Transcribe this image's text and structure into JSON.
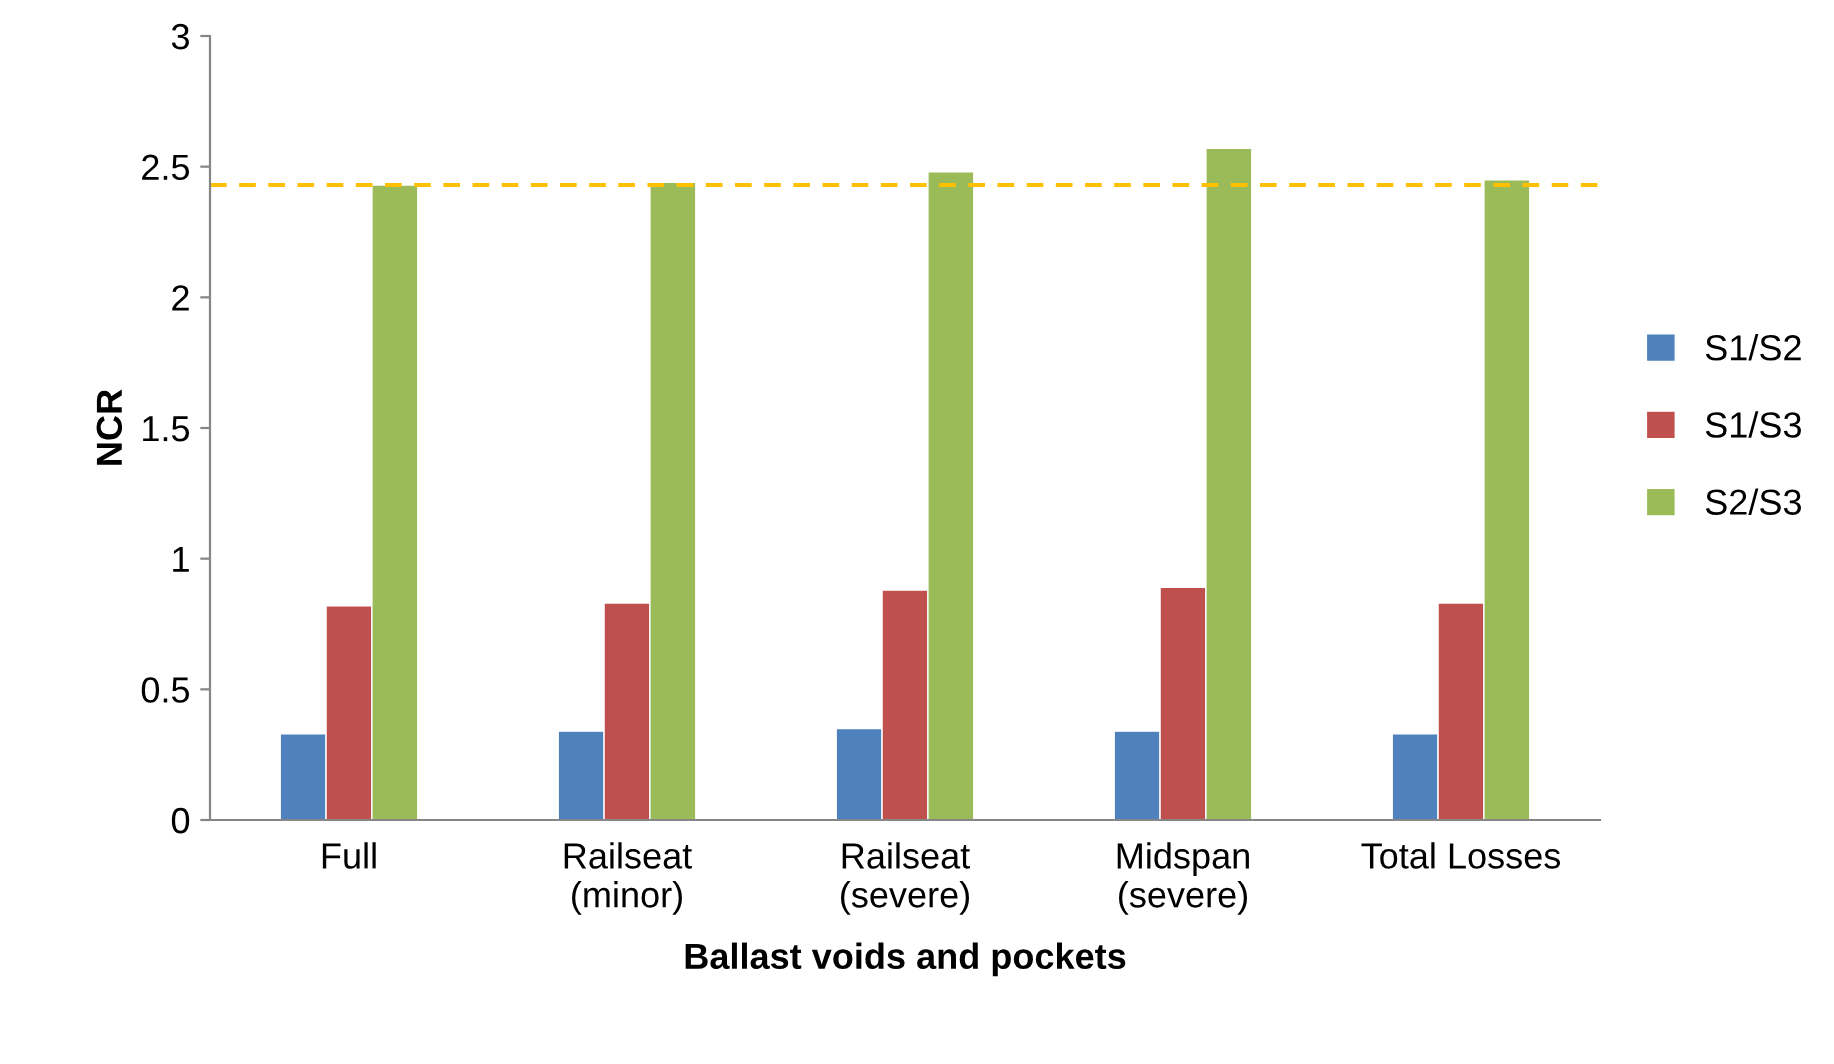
{
  "chart_data": {
    "type": "bar",
    "xlabel": "Ballast voids and pockets",
    "ylabel": "NCR",
    "categories": [
      "Full",
      "Railseat\n(minor)",
      "Railseat\n(severe)",
      "Midspan\n(severe)",
      "Total Losses"
    ],
    "series": [
      {
        "name": "S1/S2",
        "color": "#4f81bd",
        "values": [
          0.33,
          0.34,
          0.35,
          0.34,
          0.33
        ]
      },
      {
        "name": "S1/S3",
        "color": "#c0504d",
        "values": [
          0.82,
          0.83,
          0.88,
          0.89,
          0.83
        ]
      },
      {
        "name": "S2/S3",
        "color": "#9bbb59",
        "values": [
          2.43,
          2.44,
          2.48,
          2.57,
          2.45
        ]
      }
    ],
    "ylim": [
      0,
      3
    ],
    "yticks": [
      0,
      {
        "value": 0.5,
        "label": "0.5"
      },
      1,
      {
        "value": 1.5,
        "label": "1.5"
      },
      2,
      {
        "value": 2.5,
        "label": "2.5"
      },
      3
    ],
    "ref_lines": [
      {
        "axis": "y",
        "value": 2.43,
        "color": "#ffc000",
        "line_style": "dashed"
      }
    ],
    "grid": false,
    "legend": "right"
  }
}
